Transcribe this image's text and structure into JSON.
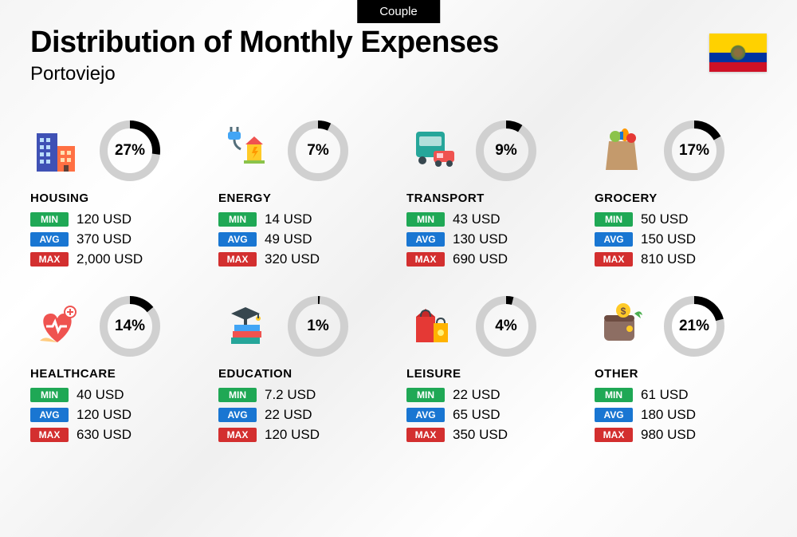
{
  "tab_label": "Couple",
  "title": "Distribution of Monthly Expenses",
  "subtitle": "Portoviejo",
  "flag": {
    "colors": {
      "top": "#ffd100",
      "mid": "#0033a0",
      "bot": "#ce1126"
    }
  },
  "badges": {
    "min": "MIN",
    "avg": "AVG",
    "max": "MAX"
  },
  "badge_colors": {
    "min": "#1fa855",
    "avg": "#1976d2",
    "max": "#d32f2f"
  },
  "donut": {
    "radius": 33,
    "stroke_width": 10,
    "track_color": "#d0d0d0",
    "fill_color": "#000000"
  },
  "currency_suffix": " USD",
  "categories": [
    {
      "key": "housing",
      "name": "HOUSING",
      "pct": 27,
      "min": "120",
      "avg": "370",
      "max": "2,000",
      "icon": "housing"
    },
    {
      "key": "energy",
      "name": "ENERGY",
      "pct": 7,
      "min": "14",
      "avg": "49",
      "max": "320",
      "icon": "energy"
    },
    {
      "key": "transport",
      "name": "TRANSPORT",
      "pct": 9,
      "min": "43",
      "avg": "130",
      "max": "690",
      "icon": "transport"
    },
    {
      "key": "grocery",
      "name": "GROCERY",
      "pct": 17,
      "min": "50",
      "avg": "150",
      "max": "810",
      "icon": "grocery"
    },
    {
      "key": "healthcare",
      "name": "HEALTHCARE",
      "pct": 14,
      "min": "40",
      "avg": "120",
      "max": "630",
      "icon": "healthcare"
    },
    {
      "key": "education",
      "name": "EDUCATION",
      "pct": 1,
      "min": "7.2",
      "avg": "22",
      "max": "120",
      "icon": "education"
    },
    {
      "key": "leisure",
      "name": "LEISURE",
      "pct": 4,
      "min": "22",
      "avg": "65",
      "max": "350",
      "icon": "leisure"
    },
    {
      "key": "other",
      "name": "OTHER",
      "pct": 21,
      "min": "61",
      "avg": "180",
      "max": "980",
      "icon": "other"
    }
  ]
}
